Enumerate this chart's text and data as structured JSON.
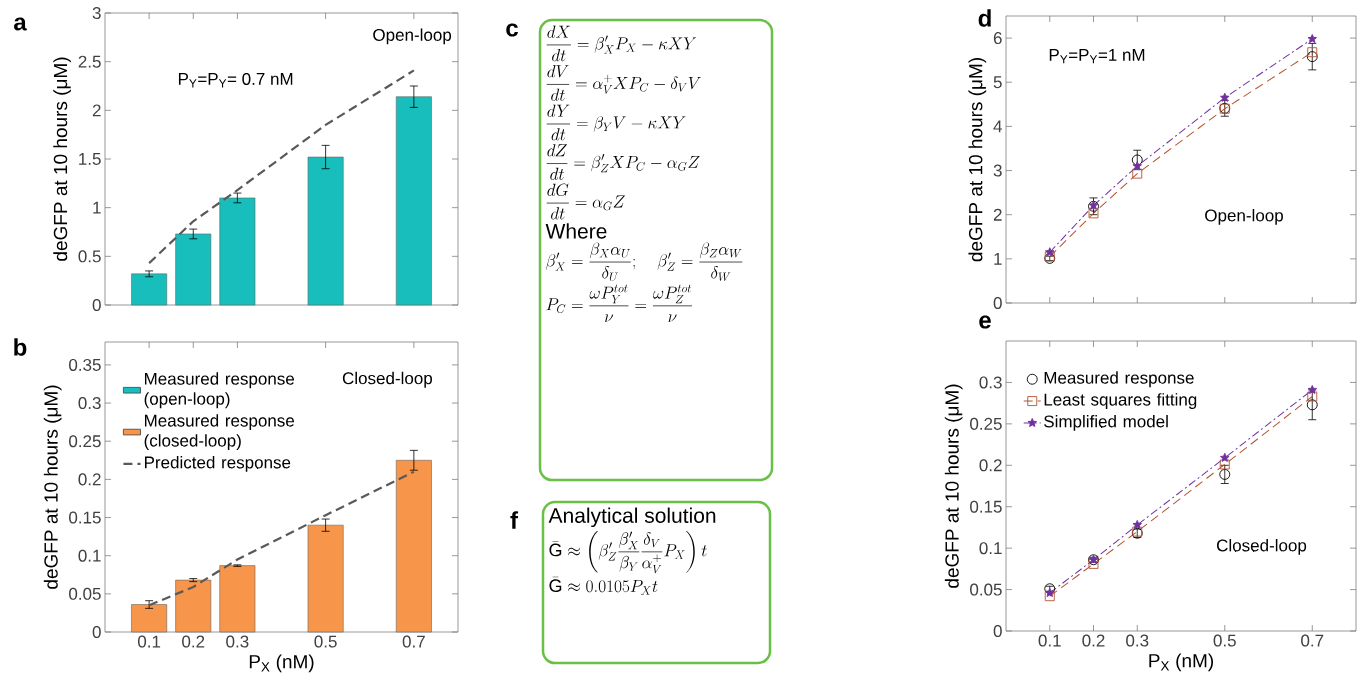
{
  "chart_data": [
    {
      "type": "bar",
      "title": "a",
      "ylabel": "deGFP at 10 hours (μM)",
      "x": [
        0.1,
        0.2,
        0.3,
        0.5,
        0.7
      ],
      "xlim": [
        0,
        0.8
      ],
      "xticks": [
        0.1,
        0.2,
        0.3,
        0.5,
        0.7
      ],
      "ylim": [
        0,
        3
      ],
      "yticks": [
        0,
        0.5,
        1,
        1.5,
        2,
        2.5,
        3
      ],
      "tick_labels": "y",
      "annotations": [
        "Open-loop",
        "P$_{Y}$=P$_{Y}$= 0.7 nM"
      ],
      "series": [
        {
          "type": "bar",
          "color": "#17bebb",
          "values": [
            0.32,
            0.73,
            1.1,
            1.52,
            2.14
          ],
          "errors": [
            0.03,
            0.05,
            0.05,
            0.12,
            0.11
          ]
        },
        {
          "type": "line",
          "color": "#595959",
          "line_style": "dashed",
          "values": [
            0.43,
            0.86,
            1.18,
            1.85,
            2.41
          ]
        }
      ]
    },
    {
      "type": "bar",
      "title": "b",
      "xlabel": "P$_{X}$ (nM)",
      "ylabel": "deGFP at 10 hours (μM)",
      "x": [
        0.1,
        0.2,
        0.3,
        0.5,
        0.7
      ],
      "xlim": [
        0,
        0.8
      ],
      "xticks": [
        0.1,
        0.2,
        0.3,
        0.5,
        0.7
      ],
      "ylim": [
        0,
        0.38
      ],
      "yticks": [
        0,
        0.05,
        0.1,
        0.15,
        0.2,
        0.25,
        0.3,
        0.35
      ],
      "legend": "top left",
      "annotations": [
        "Closed-loop"
      ],
      "series": [
        {
          "type": "bar",
          "name": "Measured response (open-loop)",
          "color": "#17bebb",
          "values": [
            null,
            null,
            null,
            null,
            null
          ]
        },
        {
          "type": "bar",
          "name": "Measured response (closed-loop)",
          "color": "#f7964a",
          "values": [
            0.036,
            0.068,
            0.087,
            0.14,
            0.225
          ],
          "errors": [
            0.005,
            0.002,
            0.001,
            0.008,
            0.013
          ]
        },
        {
          "type": "line",
          "name": "Predicted response",
          "color": "#595959",
          "line_style": "dashed",
          "values": [
            0.035,
            0.059,
            0.095,
            0.153,
            0.21
          ]
        }
      ]
    },
    {
      "type": "other",
      "title": "c",
      "subtitle": "Where",
      "annotations": [
        "\\frac{dX}{dt}=\\beta'_X P_X-\\kappa XY",
        "\\frac{dV}{dt}=\\alpha_V^{+}XP_C-\\delta_V V",
        "\\frac{dY}{dt}=\\beta_Y V-\\kappa XY",
        "\\frac{dZ}{dt}=\\beta'_Z XP_C-\\alpha_G Z",
        "\\frac{dG}{dt}=\\alpha_G Z",
        "\\beta'_X=\\frac{\\beta_X\\alpha_U}{\\delta_U};\\quad \\beta'_Z=\\frac{\\beta_Z\\alpha_W}{\\delta_W}",
        "P_C=\\frac{\\omega P_Y^{tot}}{\\nu}=\\frac{\\omega P_Z^{tot}}{\\nu}"
      ]
    },
    {
      "type": "line",
      "title": "d",
      "ylabel": "deGFP at 10 hours (μM)",
      "x": [
        0.1,
        0.2,
        0.3,
        0.5,
        0.7
      ],
      "xlim": [
        0,
        0.8
      ],
      "xticks": [
        0.1,
        0.2,
        0.3,
        0.5,
        0.7
      ],
      "ylim": [
        0,
        6.5
      ],
      "yticks": [
        0,
        1,
        2,
        3,
        4,
        5,
        6
      ],
      "tick_labels": "y",
      "annotations": [
        "P$_{Y}$=P$_{Y}$=1 nM",
        "Open-loop"
      ],
      "series": [
        {
          "type": "scatter",
          "color": "#000000",
          "marker": "circle",
          "values": [
            1.01,
            2.19,
            3.24,
            4.41,
            5.58
          ],
          "errors": [
            0.05,
            0.19,
            0.22,
            0.18,
            0.3
          ]
        },
        {
          "type": "line",
          "color": "#b5532f",
          "marker": "square",
          "line_style": "dashed",
          "values": [
            1.05,
            2.03,
            2.93,
            4.4,
            5.68
          ]
        },
        {
          "type": "line",
          "color": "#7030a0",
          "marker": "star",
          "line_style": "dashdot",
          "values": [
            1.15,
            2.21,
            3.1,
            4.65,
            5.98
          ]
        }
      ]
    },
    {
      "type": "line",
      "title": "e",
      "xlabel": "P$_{X}$ (nM)",
      "ylabel": "deGFP at 10 hours (μM)",
      "x": [
        0.1,
        0.2,
        0.3,
        0.5,
        0.7
      ],
      "xlim": [
        0,
        0.8
      ],
      "xticks": [
        0.1,
        0.2,
        0.3,
        0.5,
        0.7
      ],
      "ylim": [
        0,
        0.35
      ],
      "yticks": [
        0,
        0.05,
        0.1,
        0.15,
        0.2,
        0.25,
        0.3
      ],
      "legend": "top left",
      "annotations": [
        "Closed-loop"
      ],
      "series": [
        {
          "type": "scatter",
          "name": "Measured response",
          "color": "#000000",
          "marker": "circle",
          "values": [
            0.051,
            0.086,
            0.118,
            0.189,
            0.273
          ],
          "errors": [
            0.003,
            0.003,
            0.005,
            0.011,
            0.018
          ]
        },
        {
          "type": "line",
          "name": "Least squares fitting",
          "color": "#b5532f",
          "marker": "square",
          "line_style": "dashed",
          "values": [
            0.042,
            0.081,
            0.12,
            0.201,
            0.283
          ]
        },
        {
          "type": "line",
          "name": "Simplified model",
          "color": "#7030a0",
          "marker": "star",
          "line_style": "dashdot",
          "values": [
            0.046,
            0.086,
            0.128,
            0.209,
            0.291
          ]
        }
      ]
    },
    {
      "type": "other",
      "title": "f",
      "subtitle": "Analytical solution",
      "annotations": [
        "\\bar{\\mathrm{G}}\\approx\\left(\\beta'_Z\\frac{\\beta'_X}{\\beta_Y}\\frac{\\delta_V}{\\alpha_V^{+}}P_X\\right)t",
        "\\bar{\\mathrm{G}}\\approx 0.0105P_Xt"
      ]
    }
  ]
}
